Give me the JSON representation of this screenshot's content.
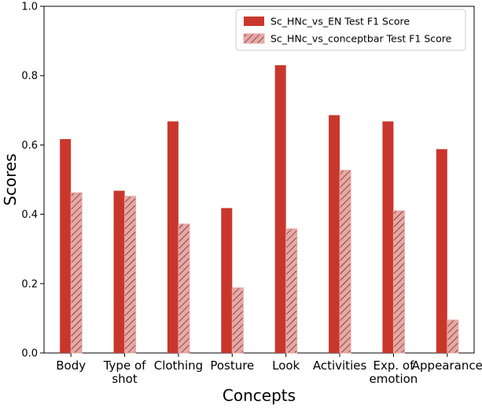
{
  "chart_data": {
    "type": "bar",
    "title": "",
    "xlabel": "Concepts",
    "ylabel": "Scores",
    "ylim": [
      0,
      1.0
    ],
    "yticks": [
      "0.0",
      "0.2",
      "0.4",
      "0.6",
      "0.8",
      "1.0"
    ],
    "categories": [
      [
        "Body"
      ],
      [
        "Type of",
        "shot"
      ],
      [
        "Clothing"
      ],
      [
        "Posture"
      ],
      [
        "Look"
      ],
      [
        "Activities"
      ],
      [
        "Exp. of",
        "emotion"
      ],
      [
        "Appearance"
      ]
    ],
    "series": [
      {
        "name": "Sc_HNc_vs_EN Test F1 Score",
        "style": "solid",
        "color": "#c9372c",
        "values": [
          0.617,
          0.468,
          0.668,
          0.418,
          0.83,
          0.686,
          0.668,
          0.588
        ]
      },
      {
        "name": "Sc_HNc_vs_conceptbar Test F1 Score",
        "style": "hatched",
        "color": "#e8a8a4",
        "hatch_color": "#3a1010",
        "values": [
          0.462,
          0.452,
          0.372,
          0.188,
          0.358,
          0.527,
          0.41,
          0.095
        ]
      }
    ],
    "grid": false,
    "legend_position": "top-right"
  }
}
